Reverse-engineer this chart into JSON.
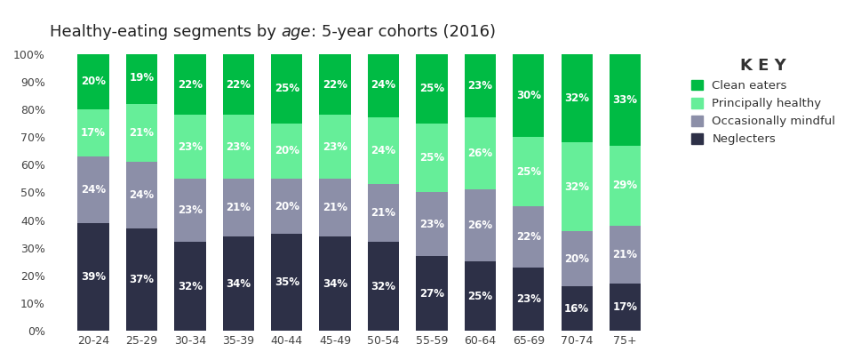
{
  "title_part1": "Healthy-eating segments by ",
  "title_italic": "age",
  "title_part2": ": 5-year cohorts (2016)",
  "categories": [
    "20-24",
    "25-29",
    "30-34",
    "35-39",
    "40-44",
    "45-49",
    "50-54",
    "55-59",
    "60-64",
    "65-69",
    "70-74",
    "75+"
  ],
  "segments": {
    "Neglecters": [
      39,
      37,
      32,
      34,
      35,
      34,
      32,
      27,
      25,
      23,
      16,
      17
    ],
    "Occasionally mindful": [
      24,
      24,
      23,
      21,
      20,
      21,
      21,
      23,
      26,
      22,
      20,
      21
    ],
    "Principally healthy": [
      17,
      21,
      23,
      23,
      20,
      23,
      24,
      25,
      26,
      25,
      32,
      29
    ],
    "Clean eaters": [
      20,
      19,
      22,
      22,
      25,
      22,
      24,
      25,
      23,
      30,
      32,
      33
    ]
  },
  "colors": {
    "Neglecters": "#2d3047",
    "Occasionally mindful": "#8c8fa8",
    "Principally healthy": "#66ee99",
    "Clean eaters": "#00bb44"
  },
  "legend_title": "K E Y",
  "ylim": [
    0,
    100
  ],
  "text_color": "#ffffff",
  "fontsize_labels": 8.5,
  "fontsize_title": 13,
  "bar_width": 0.65,
  "legend_text_color": "#333333"
}
